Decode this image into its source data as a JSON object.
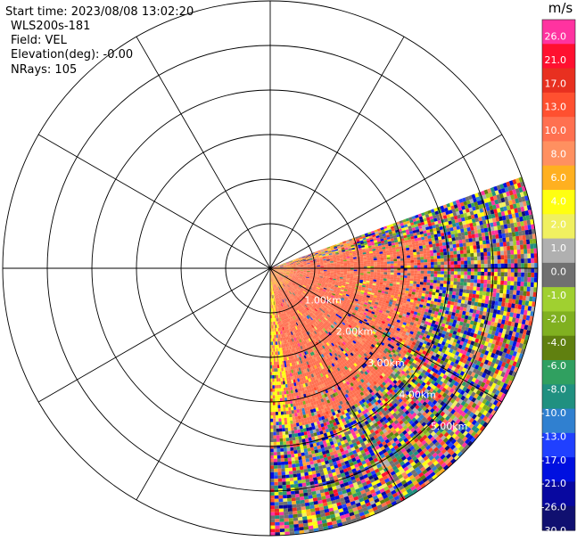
{
  "header": {
    "start_time": "Start time: 2023/08/08 13:02:20",
    "instrument": "WLS200s-181",
    "field": "Field: VEL",
    "elevation": "Elevation(deg): -0.00",
    "nrays": "NRays: 105"
  },
  "chart_data": {
    "type": "ppi",
    "field": "VEL",
    "elevation_deg": -0.0,
    "nrays": 105,
    "azimuth_range_deg": [
      70,
      180
    ],
    "range_max_km": 6.0,
    "range_rings_km": [
      1,
      2,
      3,
      4,
      5,
      6
    ],
    "range_labels": [
      "1.00km",
      "2.00km",
      "3.00km",
      "4.00km",
      "5.00km"
    ],
    "range_label_azimuth_deg": 135,
    "radial_lines_deg": [
      0,
      30,
      60,
      90,
      120,
      150,
      180,
      210,
      240,
      270,
      300,
      330
    ],
    "colorbar": {
      "unit": "m/s",
      "ticks": [
        "26.0",
        "21.0",
        "17.0",
        "13.0",
        "10.0",
        "8.0",
        "6.0",
        "4.0",
        "2.0",
        "1.0",
        "0.0",
        "-1.0",
        "-2.0",
        "-4.0",
        "-6.0",
        "-8.0",
        "-10.0",
        "-13.0",
        "-17.0",
        "-21.0",
        "-26.0",
        "-30.0"
      ],
      "colors": [
        "#ff33a0",
        "#ff1030",
        "#e83020",
        "#ff5030",
        "#ff7050",
        "#ff9060",
        "#ffb020",
        "#ffff10",
        "#f0f060",
        "#b0b0b0",
        "#707070",
        "#a0d030",
        "#80b020",
        "#608010",
        "#30a060",
        "#209080",
        "#3080d0",
        "#2040ff",
        "#0010e0",
        "#0808a0",
        "#101070"
      ]
    },
    "patterns": {
      "near_region_velocity_ms": [
        8,
        10
      ],
      "near_region_outer_km": 3.6,
      "mid_region_velocity_ms": [
        6,
        8
      ],
      "dominant_noise": "mixed, all classes"
    }
  }
}
